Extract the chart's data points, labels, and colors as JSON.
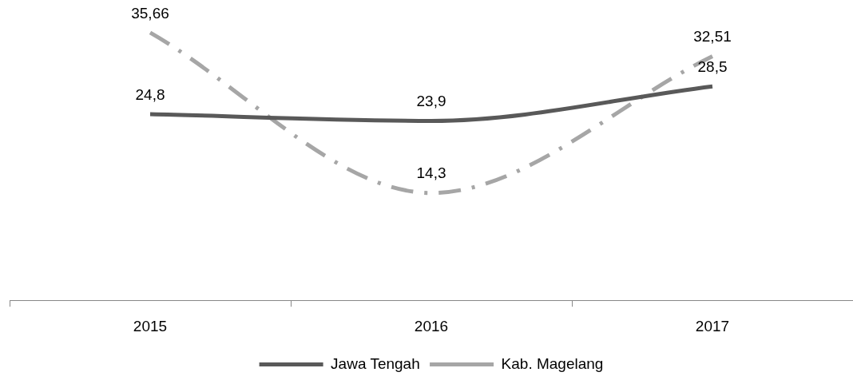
{
  "chart_data": {
    "type": "line",
    "categories": [
      "2015",
      "2016",
      "2017"
    ],
    "series": [
      {
        "name": "Jawa Tengah",
        "color": "#595959",
        "values": [
          24.8,
          23.9,
          28.5
        ],
        "value_labels": [
          "24,8",
          "23,9",
          "28,5"
        ],
        "line_style": "solid"
      },
      {
        "name": "Kab. Magelang",
        "color": "#a6a6a6",
        "values": [
          35.66,
          14.3,
          32.51
        ],
        "value_labels": [
          "35,66",
          "14,3",
          "32,51"
        ],
        "line_style": "dashed"
      }
    ],
    "legend": "bottom",
    "grid": false,
    "marker": "none"
  }
}
